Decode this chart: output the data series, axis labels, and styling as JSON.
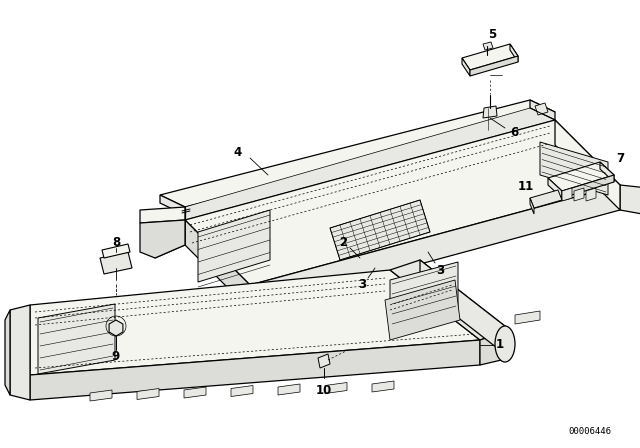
{
  "bg": "#ffffff",
  "lc": "#000000",
  "lw_main": 0.9,
  "lw_thin": 0.5,
  "lw_dash": 0.4,
  "fig_w": 6.4,
  "fig_h": 4.48,
  "dpi": 100,
  "catalog": "00006446"
}
